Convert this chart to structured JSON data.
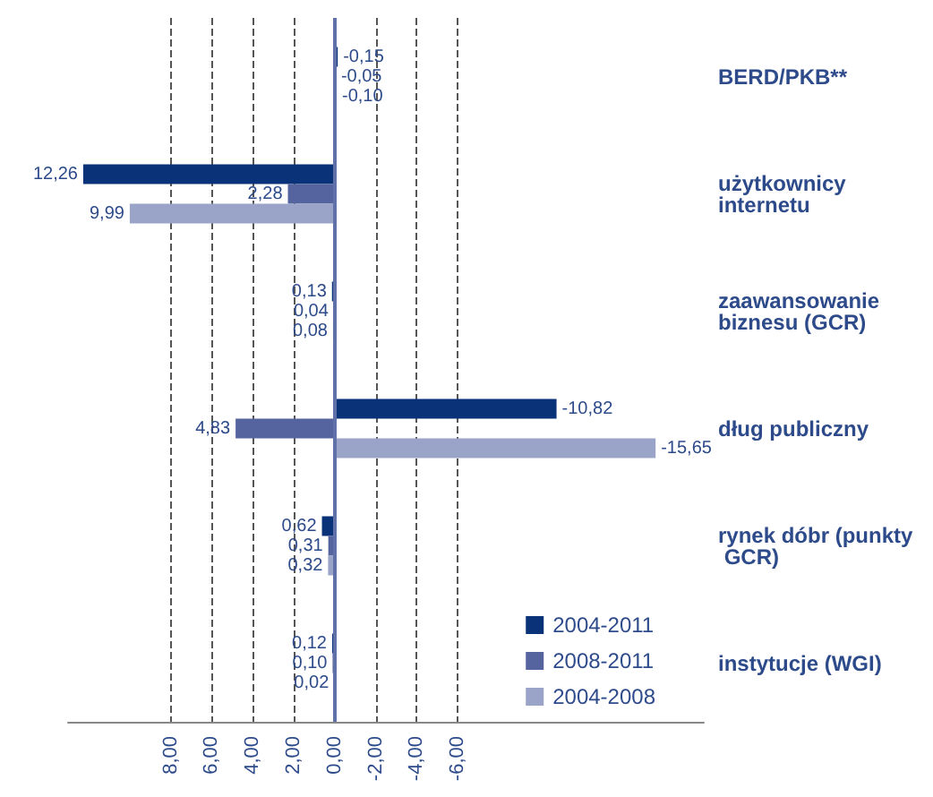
{
  "chart_data": {
    "type": "bar",
    "orientation": "horizontal",
    "categories": [
      "BERD/PKB**",
      "użytkownicy internetu",
      "zaawansowanie biznesu (GCR)",
      "dług publiczny",
      "rynek dóbr (punkty GCR)",
      "instytucje (WGI)"
    ],
    "series": [
      {
        "name": "2004-2011",
        "color": "#0a3278",
        "values": [
          -0.15,
          12.26,
          0.13,
          -10.82,
          0.62,
          0.12
        ],
        "value_labels": [
          "-0,15",
          "12,26",
          "0,13",
          "-10,82",
          "0,62",
          "0,12"
        ]
      },
      {
        "name": "2008-2011",
        "color": "#55639e",
        "values": [
          -0.05,
          2.28,
          0.04,
          4.83,
          0.31,
          0.1
        ],
        "value_labels": [
          "-0,05",
          "2,28",
          "0,04",
          "4,83",
          "0,31",
          "0,10"
        ]
      },
      {
        "name": "2004-2008",
        "color": "#9aa3c8",
        "values": [
          -0.1,
          9.99,
          0.08,
          -15.65,
          0.32,
          0.02
        ],
        "value_labels": [
          "-0,10",
          "9,99",
          "0,08",
          "-15,65",
          "0,32",
          "0,02"
        ]
      }
    ],
    "xlim": [
      13,
      -18
    ],
    "ref_lines": [
      {
        "axis": "x",
        "value": 0,
        "color": "#6070a8"
      }
    ],
    "xticks": [
      {
        "value": 8,
        "label": "8,00"
      },
      {
        "value": 6,
        "label": "6,00"
      },
      {
        "value": 4,
        "label": "4,00"
      },
      {
        "value": 2,
        "label": "2,00"
      },
      {
        "value": 0,
        "label": "0,00"
      },
      {
        "value": -2,
        "label": "-2,00"
      },
      {
        "value": -4,
        "label": "-4,00"
      },
      {
        "value": -6,
        "label": "-6,00"
      }
    ],
    "grid": "x",
    "legend": "bottom right"
  }
}
